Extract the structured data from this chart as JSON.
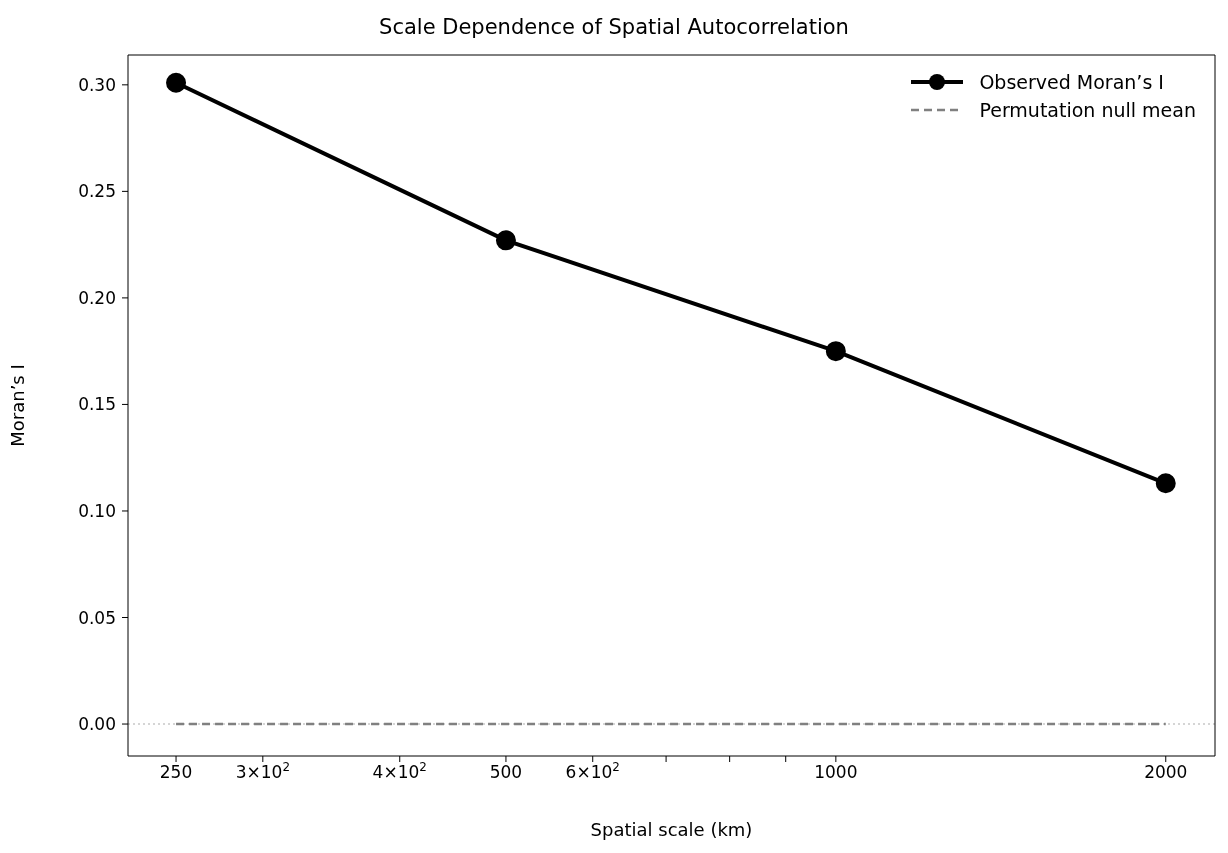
{
  "chart_data": {
    "type": "line",
    "title": "Scale Dependence of Spatial Autocorrelation",
    "xlabel": "Spatial scale (km)",
    "ylabel": "Moran’s I",
    "x": [
      250,
      500,
      1000,
      2000
    ],
    "series": [
      {
        "name": "Observed Moran’s I",
        "color": "#000000",
        "values": [
          0.301,
          0.227,
          0.175,
          0.113
        ],
        "marker": "circle",
        "line_style": "solid"
      },
      {
        "name": "Permutation null mean",
        "color": "#808080",
        "values": [
          0,
          0,
          0,
          0
        ],
        "marker": "none",
        "line_style": "dashed"
      }
    ],
    "log": "x",
    "xlim": [
      226,
      2218
    ],
    "ylim": [
      -0.015,
      0.314
    ],
    "xticks": [
      250,
      {
        "value": 300,
        "label": "3×10$^{2}$"
      },
      {
        "value": 400,
        "label": "4×10$^{2}$"
      },
      500,
      {
        "value": 600,
        "label": "6×10$^{2}$"
      },
      {
        "value": 700,
        "label": null
      },
      {
        "value": 800,
        "label": null
      },
      {
        "value": 900,
        "label": null
      },
      1000,
      2000
    ],
    "yticks": [
      {
        "value": 0,
        "label": "0.00"
      },
      {
        "value": 0.05,
        "label": "0.05"
      },
      {
        "value": 0.1,
        "label": "0.10"
      },
      {
        "value": 0.15,
        "label": "0.15"
      },
      {
        "value": 0.2,
        "label": "0.20"
      },
      {
        "value": 0.25,
        "label": "0.25"
      },
      {
        "value": 0.3,
        "label": "0.30"
      }
    ],
    "ref_lines": [
      {
        "axis": "y",
        "value": 0,
        "color": "#c8c8c8",
        "line_style": "dotted"
      }
    ],
    "grid": false,
    "legend": "top right"
  }
}
